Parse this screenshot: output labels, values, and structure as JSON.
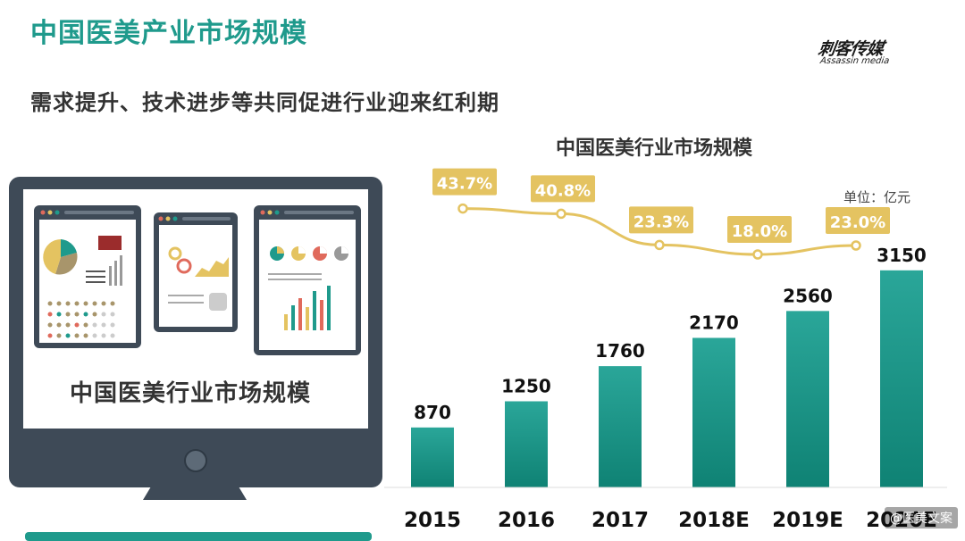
{
  "title": "中国医美产业市场规模",
  "subtitle": "需求提升、技术进步等共同促进行业迎来红利期",
  "logo": {
    "main": "刺客传媒",
    "sub": "Assassin media"
  },
  "monitor_caption": "中国医美行业市场规模",
  "watermark": "@医美文案",
  "colors": {
    "teal": "#1f9a8c",
    "gold": "#e4c361",
    "dark": "#3e4a57"
  },
  "chart_data": {
    "type": "bar",
    "title": "中国医美行业市场规模",
    "unit": "单位：亿元",
    "categories": [
      "2015",
      "2016",
      "2017",
      "2018E",
      "2019E",
      "2020E"
    ],
    "values": [
      870,
      1250,
      1760,
      2170,
      2560,
      3150
    ],
    "growth_line": {
      "type": "line",
      "labels": [
        "43.7%",
        "40.8%",
        "23.3%",
        "18.0%",
        "23.0%"
      ],
      "values": [
        43.7,
        40.8,
        23.3,
        18.0,
        23.0
      ],
      "categories": [
        "2015",
        "2016",
        "2017",
        "2018E",
        "2019E"
      ]
    }
  }
}
